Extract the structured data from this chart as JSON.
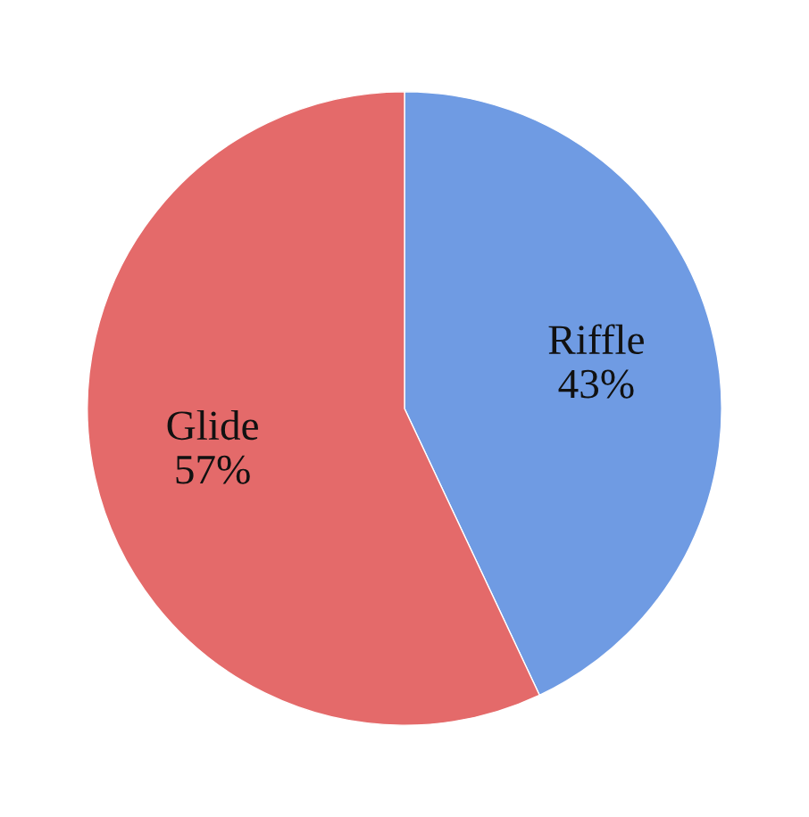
{
  "chart_data": {
    "type": "pie",
    "categories": [
      "Riffle",
      "Glide"
    ],
    "values": [
      43,
      57
    ],
    "value_labels": [
      "43%",
      "57%"
    ],
    "colors": [
      "#6f9be3",
      "#e46a6a"
    ],
    "legend": false
  }
}
